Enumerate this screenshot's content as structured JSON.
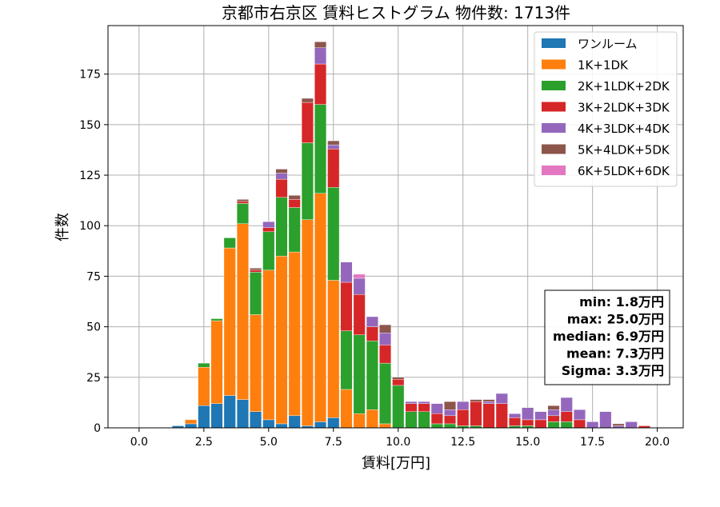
{
  "chart_data": {
    "type": "bar",
    "stacked": true,
    "title": "京都市右京区 賃料ヒストグラム 物件数: 1713件",
    "xlabel": "賃料[万円]",
    "ylabel": "件数",
    "xlim": [
      -1.2,
      21.0
    ],
    "ylim": [
      0,
      199
    ],
    "xticks": [
      0.0,
      2.5,
      5.0,
      7.5,
      10.0,
      12.5,
      15.0,
      17.5,
      20.0
    ],
    "xtick_labels": [
      "0.0",
      "2.5",
      "5.0",
      "7.5",
      "10.0",
      "12.5",
      "15.0",
      "17.5",
      "20.0"
    ],
    "yticks": [
      0,
      25,
      50,
      75,
      100,
      125,
      150,
      175
    ],
    "ytick_labels": [
      "0",
      "25",
      "50",
      "75",
      "100",
      "125",
      "150",
      "175"
    ],
    "grid": true,
    "legend_position": "top-right",
    "bin_width": 0.5,
    "x": [
      1.5,
      2.0,
      2.5,
      3.0,
      3.5,
      4.0,
      4.5,
      5.0,
      5.5,
      6.0,
      6.5,
      7.0,
      7.5,
      8.0,
      8.5,
      9.0,
      9.5,
      10.0,
      10.5,
      11.0,
      11.5,
      12.0,
      12.5,
      13.0,
      13.5,
      14.0,
      14.5,
      15.0,
      15.5,
      16.0,
      16.5,
      17.0,
      17.5,
      18.0,
      18.5,
      19.0,
      19.5
    ],
    "series": [
      {
        "name": "ワンルーム",
        "color": "#1f77b4",
        "values": [
          1,
          2,
          11,
          12,
          16,
          14,
          8,
          4,
          2,
          6,
          1,
          3,
          5,
          0,
          0,
          0,
          0,
          0,
          0,
          0,
          0,
          0,
          0,
          0,
          0,
          0,
          0,
          0,
          0,
          0,
          0,
          0,
          0,
          0,
          0,
          0,
          0
        ]
      },
      {
        "name": "1K+1DK",
        "color": "#ff7f0e",
        "values": [
          0,
          2,
          19,
          41,
          73,
          87,
          48,
          74,
          83,
          81,
          102,
          113,
          68,
          19,
          7,
          9,
          2,
          0,
          0,
          0,
          0,
          0,
          0,
          0,
          0,
          0,
          0,
          0,
          0,
          0,
          0,
          0,
          0,
          0,
          0,
          0,
          0
        ]
      },
      {
        "name": "2K+1LDK+2DK",
        "color": "#2ca02c",
        "values": [
          0,
          0,
          2,
          1,
          5,
          10,
          21,
          19,
          29,
          22,
          38,
          44,
          46,
          29,
          39,
          34,
          30,
          21,
          8,
          8,
          2,
          2,
          1,
          1,
          0,
          0,
          1,
          1,
          0,
          3,
          3,
          0,
          0,
          0,
          0,
          0,
          0
        ]
      },
      {
        "name": "3K+2LDK+3DK",
        "color": "#d62728",
        "values": [
          0,
          0,
          0,
          0,
          0,
          1,
          1,
          2,
          9,
          4,
          20,
          20,
          19,
          24,
          20,
          7,
          9,
          3,
          4,
          4,
          5,
          4,
          8,
          12,
          12,
          12,
          4,
          3,
          4,
          3,
          5,
          4,
          0,
          0,
          0,
          0,
          1
        ]
      },
      {
        "name": "4K+3LDK+4DK",
        "color": "#9467bd",
        "values": [
          0,
          0,
          0,
          0,
          0,
          0,
          0,
          3,
          3,
          0,
          0,
          8,
          2,
          10,
          8,
          5,
          6,
          0,
          1,
          1,
          5,
          3,
          4,
          0,
          1,
          5,
          2,
          6,
          4,
          3,
          7,
          5,
          3,
          8,
          1,
          3,
          0
        ]
      },
      {
        "name": "5K+4LDK+5DK",
        "color": "#8c564b",
        "values": [
          0,
          0,
          0,
          0,
          0,
          1,
          1,
          0,
          2,
          2,
          2,
          3,
          2,
          0,
          0,
          0,
          4,
          1,
          0,
          0,
          0,
          4,
          0,
          1,
          1,
          0,
          0,
          0,
          0,
          2,
          0,
          0,
          0,
          0,
          1,
          0,
          0
        ]
      },
      {
        "name": "6K+5LDK+6DK",
        "color": "#e377c2",
        "values": [
          0,
          0,
          0,
          0,
          0,
          0,
          0,
          0,
          0,
          0,
          0,
          0,
          0,
          0,
          2,
          0,
          0,
          0,
          0,
          0,
          0,
          0,
          0,
          0,
          0,
          0,
          0,
          0,
          0,
          0,
          0,
          0,
          0,
          0,
          0,
          0,
          0
        ]
      }
    ],
    "stats_box": {
      "lines": [
        "min: 1.8万円",
        "max: 25.0万円",
        "median: 6.9万円",
        "mean: 7.3万円",
        "Sigma: 3.3万円"
      ]
    }
  }
}
